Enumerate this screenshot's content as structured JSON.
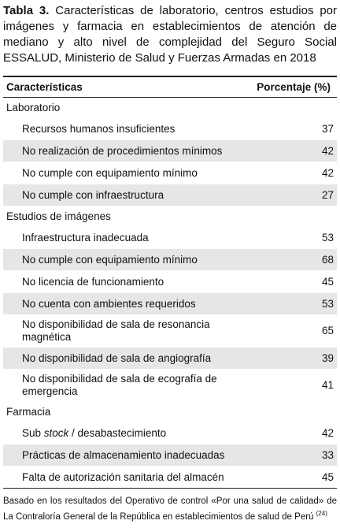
{
  "title": {
    "label": "Tabla 3.",
    "text": "Características de laboratorio, centros estudios por imágenes y farmacia en establecimientos de atención de mediano y alto nivel de complejidad del Seguro Social ESSALUD, Ministerio de Salud y Fuerzas Armadas en 2018"
  },
  "table": {
    "header": [
      "Características",
      "Porcentaje (%)"
    ],
    "sections": [
      {
        "name": "Laboratorio",
        "rows": [
          {
            "label": "Recursos humanos insuficientes",
            "value": 37
          },
          {
            "label": "No realización de procedimientos mínimos",
            "value": 42
          },
          {
            "label": "No cumple con equipamiento mínimo",
            "value": 42
          },
          {
            "label": "No cumple con infraestructura",
            "value": 27
          }
        ]
      },
      {
        "name": "Estudios de imágenes",
        "rows": [
          {
            "label": "Infraestructura inadecuada",
            "value": 53
          },
          {
            "label": "No cumple con equipamiento mínimo",
            "value": 68
          },
          {
            "label": "No licencia de funcionamiento",
            "value": 45
          },
          {
            "label": "No cuenta con ambientes requeridos",
            "value": 53
          },
          {
            "label": "No disponibilidad de sala de resonancia magnética",
            "value": 65
          },
          {
            "label": "No disponibilidad de sala de angiografía",
            "value": 39
          },
          {
            "label": "No disponibilidad de sala de ecografía de emergencia",
            "value": 41
          }
        ]
      },
      {
        "name": "Farmacia",
        "rows": [
          {
            "label_parts": [
              "Sub ",
              "stock",
              " / desabastecimiento"
            ],
            "italic_part": 1,
            "value": 42
          },
          {
            "label": "Prácticas de almacenamiento inadecuadas",
            "value": 33
          },
          {
            "label": "Falta de autorización sanitaria del almacén",
            "value": 45
          }
        ]
      }
    ]
  },
  "footnote": {
    "text": "Basado en los resultados del Operativo de control «Por una salud de calidad» de La Contraloría General de la República en establecimientos de salud de Perú",
    "ref": "(24)"
  }
}
